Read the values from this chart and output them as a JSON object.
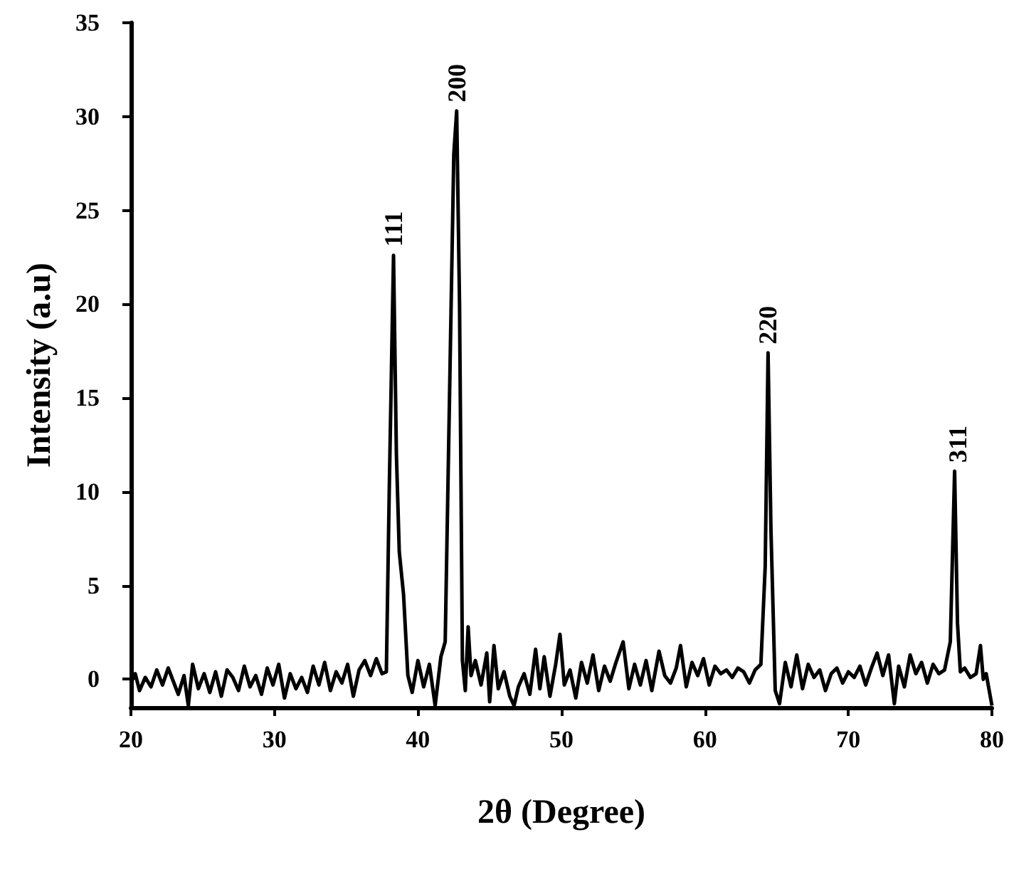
{
  "chart_data": {
    "type": "line",
    "xlabel": "2θ (Degree)",
    "ylabel": "Intensity (a.u)",
    "xlim": [
      20,
      80
    ],
    "xticks": [
      20,
      30,
      40,
      50,
      60,
      70,
      80
    ],
    "ylim": [
      -1.5,
      35
    ],
    "yticks": [
      0,
      5,
      10,
      15,
      20,
      25,
      30,
      35
    ],
    "grid": false,
    "marker": "none",
    "line_style": "solid",
    "annotations": [
      {
        "text": "111",
        "x": 38.3,
        "y": 22.6
      },
      {
        "text": "200",
        "x": 42.7,
        "y": 30.3
      },
      {
        "text": "220",
        "x": 64.4,
        "y": 17.4
      },
      {
        "text": "311",
        "x": 77.6,
        "y": 11.1
      }
    ],
    "series": [
      {
        "color": "#000000",
        "x": [
          20,
          20.3,
          20.6,
          21,
          21.4,
          21.8,
          22.2,
          22.6,
          23,
          23.3,
          23.7,
          24,
          24.3,
          24.7,
          25.1,
          25.5,
          25.9,
          26.3,
          26.7,
          27.1,
          27.5,
          27.9,
          28.3,
          28.7,
          29.1,
          29.5,
          29.9,
          30.3,
          30.7,
          31.1,
          31.5,
          31.9,
          32.3,
          32.7,
          33.1,
          33.5,
          33.9,
          34.3,
          34.7,
          35.1,
          35.5,
          35.9,
          36.3,
          36.7,
          37.1,
          37.5,
          37.8,
          38.0,
          38.3,
          38.5,
          38.7,
          39.0,
          39.3,
          39.6,
          40.0,
          40.4,
          40.8,
          41.2,
          41.6,
          41.9,
          42.2,
          42.5,
          42.7,
          42.9,
          43.1,
          43.3,
          43.5,
          43.7,
          44.0,
          44.4,
          44.8,
          45.0,
          45.3,
          45.6,
          46.0,
          46.4,
          46.7,
          47.0,
          47.4,
          47.8,
          48.2,
          48.5,
          48.8,
          49.2,
          49.6,
          49.9,
          50.2,
          50.6,
          51.0,
          51.4,
          51.8,
          52.2,
          52.6,
          53.0,
          53.4,
          53.8,
          54.3,
          54.7,
          55.1,
          55.5,
          55.9,
          56.3,
          56.8,
          57.2,
          57.6,
          58.0,
          58.3,
          58.7,
          59.1,
          59.5,
          59.9,
          60.3,
          60.7,
          61.1,
          61.5,
          61.9,
          62.3,
          62.7,
          63.1,
          63.5,
          63.9,
          64.2,
          64.4,
          64.6,
          64.9,
          65.2,
          65.6,
          66.0,
          66.4,
          66.8,
          67.2,
          67.6,
          68.0,
          68.4,
          68.8,
          69.2,
          69.6,
          70.0,
          70.4,
          70.8,
          71.2,
          71.6,
          72.0,
          72.4,
          72.8,
          73.2,
          73.5,
          73.9,
          74.3,
          74.7,
          75.1,
          75.5,
          75.9,
          76.3,
          76.7,
          77.1,
          77.4,
          77.6,
          77.8,
          78.1,
          78.5,
          78.9,
          79.2,
          79.4,
          79.6,
          80
        ],
        "values": [
          -0.2,
          0.3,
          -0.6,
          0.1,
          -0.4,
          0.5,
          -0.3,
          0.6,
          -0.2,
          -0.8,
          0.2,
          -1.4,
          0.8,
          -0.5,
          0.3,
          -0.7,
          0.4,
          -0.9,
          0.5,
          0.1,
          -0.6,
          0.7,
          -0.4,
          0.2,
          -0.8,
          0.6,
          -0.3,
          0.8,
          -1.0,
          0.3,
          -0.5,
          0.1,
          -0.7,
          0.7,
          -0.3,
          0.9,
          -0.6,
          0.4,
          -0.2,
          0.8,
          -0.9,
          0.5,
          1.0,
          0.2,
          1.1,
          0.3,
          0.4,
          10.0,
          22.6,
          12.0,
          6.8,
          4.5,
          0.2,
          -0.7,
          1.0,
          -0.4,
          0.8,
          -1.4,
          1.2,
          2.0,
          15.0,
          28.0,
          30.3,
          20.0,
          1.0,
          -0.6,
          2.8,
          0.2,
          1.0,
          -0.3,
          1.4,
          -1.2,
          1.8,
          -0.5,
          0.4,
          -0.9,
          -1.4,
          -0.4,
          0.3,
          -0.8,
          1.6,
          -0.5,
          1.2,
          -0.9,
          0.8,
          2.4,
          -0.3,
          0.5,
          -1.0,
          0.9,
          -0.2,
          1.3,
          -0.6,
          0.7,
          -0.1,
          0.9,
          2.0,
          -0.5,
          0.8,
          -0.3,
          1.0,
          -0.6,
          1.5,
          0.2,
          -0.2,
          0.6,
          1.8,
          -0.4,
          0.9,
          0.2,
          1.1,
          -0.3,
          0.7,
          0.3,
          0.5,
          0.1,
          0.6,
          0.4,
          -0.2,
          0.5,
          0.8,
          6.0,
          17.4,
          8.0,
          -0.6,
          -1.3,
          0.9,
          -0.4,
          1.3,
          -0.5,
          0.8,
          0.1,
          0.5,
          -0.6,
          0.3,
          0.6,
          -0.2,
          0.4,
          0.1,
          0.7,
          -0.3,
          0.6,
          1.4,
          0.2,
          1.3,
          -1.3,
          0.7,
          -0.4,
          1.3,
          0.3,
          0.9,
          -0.2,
          0.8,
          0.3,
          0.5,
          2.0,
          11.1,
          3.0,
          0.4,
          0.6,
          0.1,
          0.3,
          1.8,
          0.0,
          0.3,
          -1.4
        ]
      }
    ]
  }
}
